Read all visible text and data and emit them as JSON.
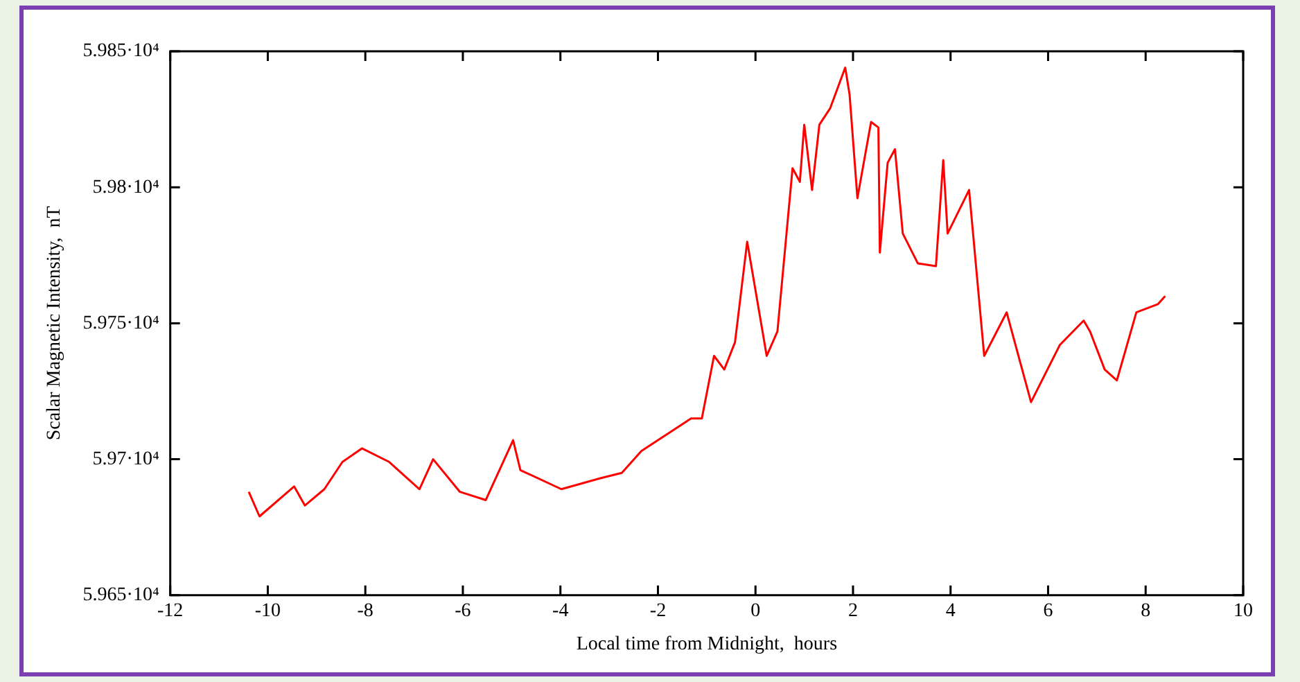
{
  "chart_data": {
    "type": "line",
    "xlabel": "Local time from Midnight,  hours",
    "ylabel": "Scalar Magnetic Intensity,  nT",
    "series": [
      {
        "color": "#ff0000",
        "x": [
          -10.39,
          -10.17,
          -9.46,
          -9.24,
          -8.84,
          -8.47,
          -8.07,
          -7.51,
          -6.89,
          -6.61,
          -6.06,
          -5.53,
          -4.97,
          -4.82,
          -3.98,
          -3.18,
          -2.74,
          -2.34,
          -1.32,
          -1.1,
          -0.85,
          -0.64,
          -0.42,
          -0.17,
          0.23,
          0.45,
          0.76,
          0.91,
          1.0,
          1.16,
          1.31,
          1.53,
          1.84,
          1.93,
          2.09,
          2.37,
          2.52,
          2.55,
          2.71,
          2.86,
          3.02,
          3.33,
          3.7,
          3.85,
          3.94,
          4.38,
          4.69,
          5.15,
          5.65,
          6.24,
          6.73,
          6.86,
          7.16,
          7.41,
          7.81,
          8.25,
          8.4
        ],
        "values": [
          59688,
          59679,
          59690,
          59683,
          59689,
          59699,
          59704,
          59699,
          59689,
          59700,
          59688,
          59685,
          59707,
          59696,
          59689,
          59693,
          59695,
          59703,
          59715,
          59715,
          59738,
          59733,
          59743,
          59780,
          59738,
          59747,
          59807,
          59802,
          59823,
          59799,
          59823,
          59829,
          59844,
          59834,
          59796,
          59824,
          59822,
          59776,
          59809,
          59814,
          59783,
          59772,
          59771,
          59810,
          59783,
          59799,
          59738,
          59754,
          59721,
          59742,
          59751,
          59747,
          59733,
          59729,
          59754,
          59757,
          59760
        ]
      }
    ],
    "xlim": [
      -12,
      10
    ],
    "xticks": [
      -12,
      -10,
      -8,
      -6,
      -4,
      -2,
      0,
      2,
      4,
      6,
      8,
      10
    ],
    "ylim": [
      59650,
      59850
    ],
    "yticks": [
      {
        "value": 59650,
        "label": "5.965·10⁴"
      },
      {
        "value": 59700,
        "label": "5.97·10⁴"
      },
      {
        "value": 59750,
        "label": "5.975·10⁴"
      },
      {
        "value": 59800,
        "label": "5.98·10⁴"
      },
      {
        "value": 59850,
        "label": "5.985·10⁴"
      }
    ],
    "grid": false,
    "legend": false,
    "marker": "none",
    "line_style": "solid"
  }
}
